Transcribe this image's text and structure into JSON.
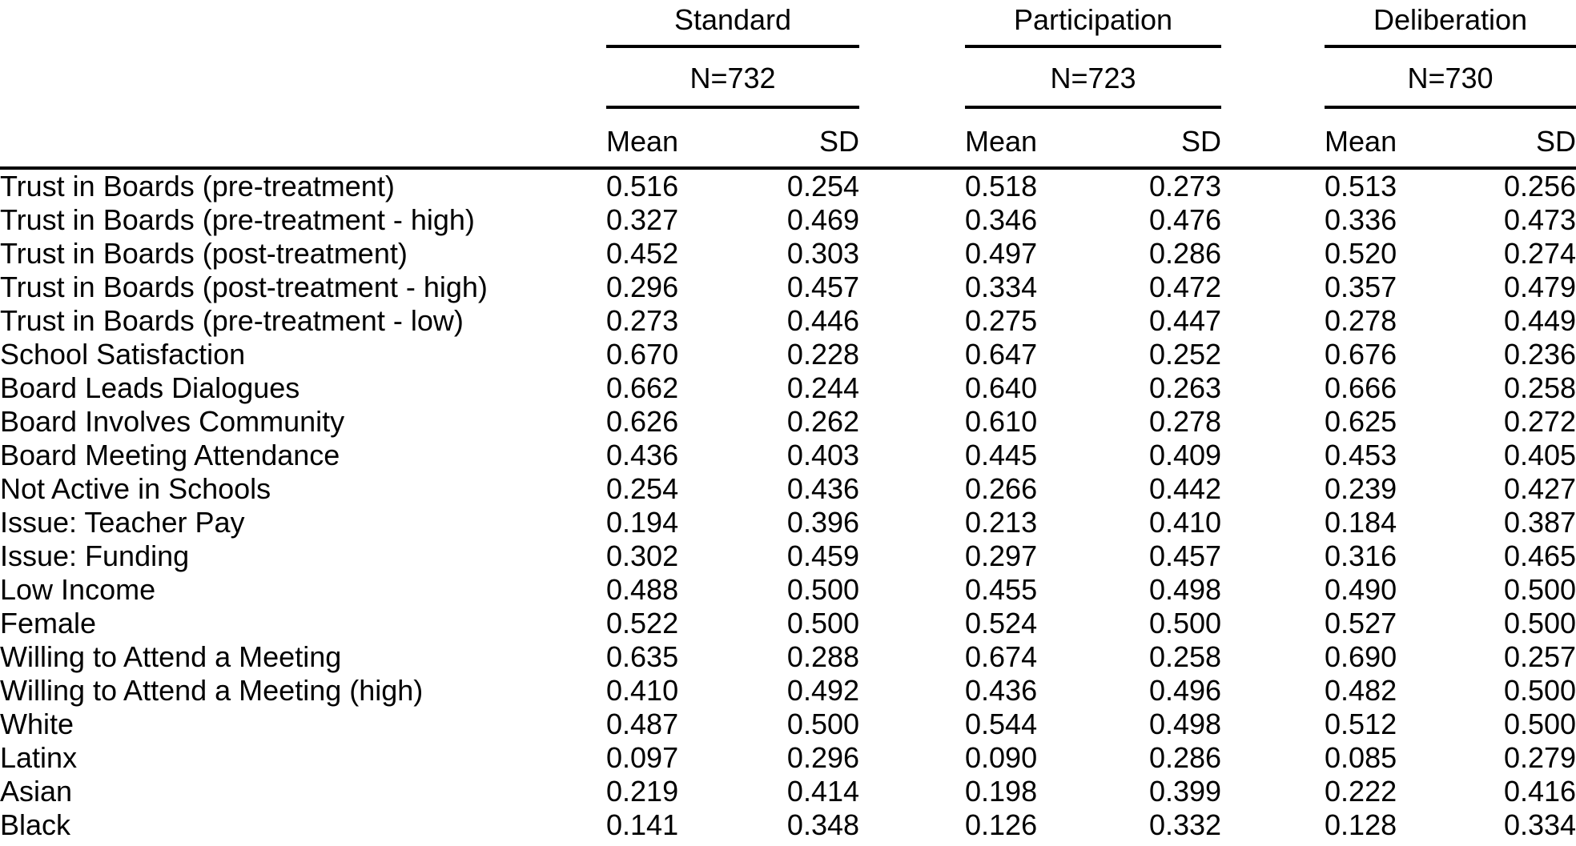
{
  "table": {
    "groups": [
      {
        "title": "Standard",
        "n": "N=732",
        "mean_header": "Mean",
        "sd_header": "SD"
      },
      {
        "title": "Participation",
        "n": "N=723",
        "mean_header": "Mean",
        "sd_header": "SD"
      },
      {
        "title": "Deliberation",
        "n": "N=730",
        "mean_header": "Mean",
        "sd_header": "SD"
      }
    ],
    "rows": [
      {
        "label": "Trust in Boards (pre-treatment)",
        "values": [
          "0.516",
          "0.254",
          "0.518",
          "0.273",
          "0.513",
          "0.256"
        ]
      },
      {
        "label": "Trust in Boards (pre-treatment - high)",
        "values": [
          "0.327",
          "0.469",
          "0.346",
          "0.476",
          "0.336",
          "0.473"
        ]
      },
      {
        "label": "Trust in Boards (post-treatment)",
        "values": [
          "0.452",
          "0.303",
          "0.497",
          "0.286",
          "0.520",
          "0.274"
        ]
      },
      {
        "label": "Trust in Boards (post-treatment - high)",
        "values": [
          "0.296",
          "0.457",
          "0.334",
          "0.472",
          "0.357",
          "0.479"
        ]
      },
      {
        "label": "Trust in Boards (pre-treatment - low)",
        "values": [
          "0.273",
          "0.446",
          "0.275",
          "0.447",
          "0.278",
          "0.449"
        ]
      },
      {
        "label": "School Satisfaction",
        "values": [
          "0.670",
          "0.228",
          "0.647",
          "0.252",
          "0.676",
          "0.236"
        ]
      },
      {
        "label": "Board Leads Dialogues",
        "values": [
          "0.662",
          "0.244",
          "0.640",
          "0.263",
          "0.666",
          "0.258"
        ]
      },
      {
        "label": "Board Involves Community",
        "values": [
          "0.626",
          "0.262",
          "0.610",
          "0.278",
          "0.625",
          "0.272"
        ]
      },
      {
        "label": "Board Meeting Attendance",
        "values": [
          "0.436",
          "0.403",
          "0.445",
          "0.409",
          "0.453",
          "0.405"
        ]
      },
      {
        "label": "Not Active in Schools",
        "values": [
          "0.254",
          "0.436",
          "0.266",
          "0.442",
          "0.239",
          "0.427"
        ]
      },
      {
        "label": "Issue: Teacher Pay",
        "values": [
          "0.194",
          "0.396",
          "0.213",
          "0.410",
          "0.184",
          "0.387"
        ]
      },
      {
        "label": "Issue: Funding",
        "values": [
          "0.302",
          "0.459",
          "0.297",
          "0.457",
          "0.316",
          "0.465"
        ]
      },
      {
        "label": "Low Income",
        "values": [
          "0.488",
          "0.500",
          "0.455",
          "0.498",
          "0.490",
          "0.500"
        ]
      },
      {
        "label": "Female",
        "values": [
          "0.522",
          "0.500",
          "0.524",
          "0.500",
          "0.527",
          "0.500"
        ]
      },
      {
        "label": "Willing to Attend a Meeting",
        "values": [
          "0.635",
          "0.288",
          "0.674",
          "0.258",
          "0.690",
          "0.257"
        ]
      },
      {
        "label": "Willing to Attend a Meeting (high)",
        "values": [
          "0.410",
          "0.492",
          "0.436",
          "0.496",
          "0.482",
          "0.500"
        ]
      },
      {
        "label": "White",
        "values": [
          "0.487",
          "0.500",
          "0.544",
          "0.498",
          "0.512",
          "0.500"
        ]
      },
      {
        "label": "Latinx",
        "values": [
          "0.097",
          "0.296",
          "0.090",
          "0.286",
          "0.085",
          "0.279"
        ]
      },
      {
        "label": "Asian",
        "values": [
          "0.219",
          "0.414",
          "0.198",
          "0.399",
          "0.222",
          "0.416"
        ]
      },
      {
        "label": "Black",
        "values": [
          "0.141",
          "0.348",
          "0.126",
          "0.332",
          "0.128",
          "0.334"
        ]
      }
    ],
    "colors": {
      "text": "#000000",
      "background": "#ffffff",
      "rule": "#000000"
    }
  }
}
